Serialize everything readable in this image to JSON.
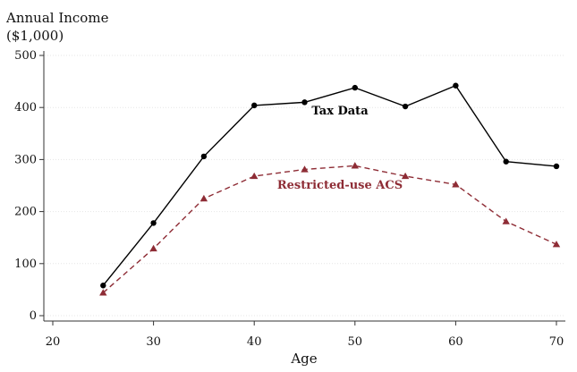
{
  "chart_data": {
    "type": "line",
    "ylabel_lines": [
      "Annual Income",
      "($1,000)"
    ],
    "xlabel": "Age",
    "xlim": [
      20,
      70
    ],
    "ylim": [
      0,
      500
    ],
    "xticks": [
      20,
      30,
      40,
      50,
      60,
      70
    ],
    "yticks": [
      0,
      100,
      200,
      300,
      400,
      500
    ],
    "grid": true,
    "series": [
      {
        "name": "Tax Data",
        "color": "#000000",
        "marker": "circle",
        "line_style": "solid",
        "x": [
          25,
          30,
          35,
          40,
          45,
          50,
          55,
          60,
          65,
          70
        ],
        "y": [
          58,
          178,
          306,
          404,
          410,
          438,
          402,
          442,
          296,
          287
        ]
      },
      {
        "name": "Restricted-use ACS",
        "color": "#8e2c35",
        "marker": "triangle",
        "line_style": "dashed",
        "x": [
          25,
          30,
          35,
          40,
          45,
          50,
          55,
          60,
          65,
          70
        ],
        "y": [
          44,
          129,
          225,
          268,
          281,
          288,
          268,
          252,
          181,
          137
        ]
      }
    ]
  }
}
